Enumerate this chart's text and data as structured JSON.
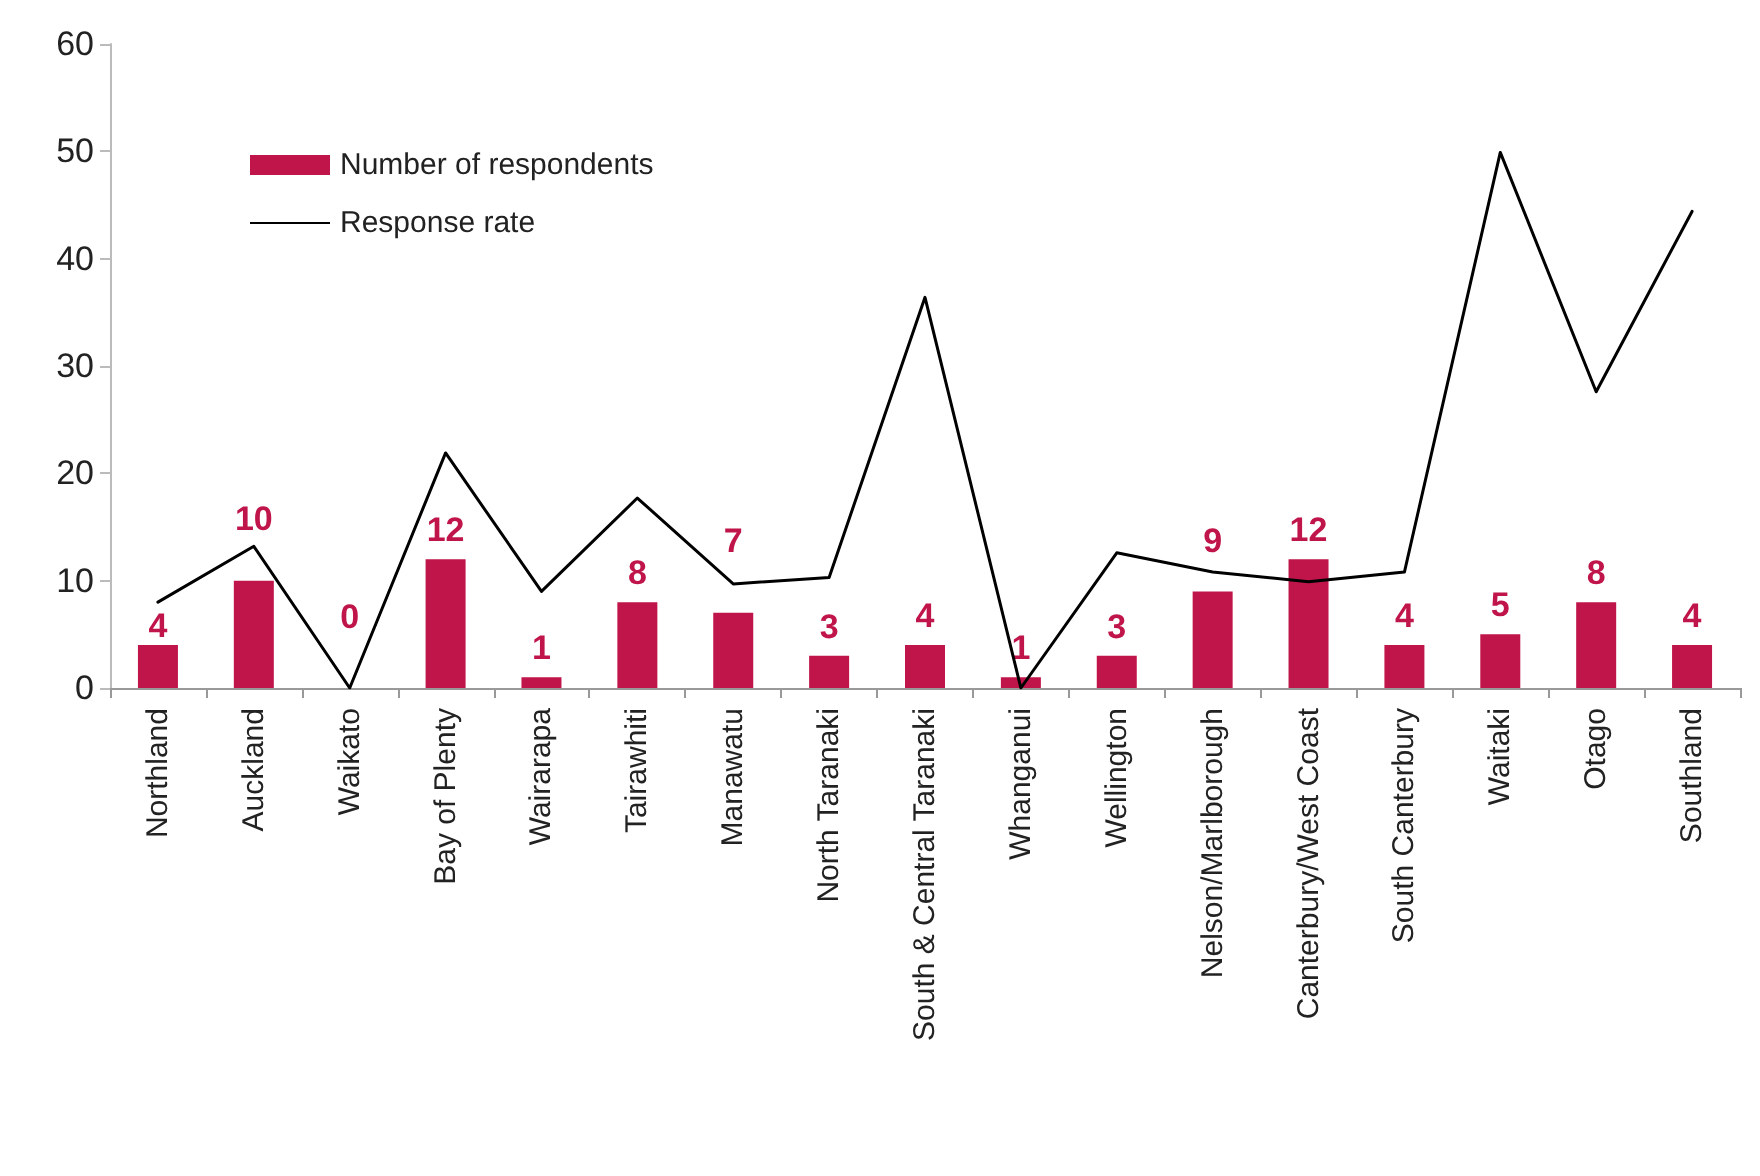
{
  "chart_data": {
    "type": "bar",
    "categories": [
      "Northland",
      "Auckland",
      "Waikato",
      "Bay of Plenty",
      "Wairarapa",
      "Tairawhiti",
      "Manawatu",
      "North Taranaki",
      "South & Central Taranaki",
      "Whanganui",
      "Wellington",
      "Nelson/Marlborough",
      "Canterbury/West Coast",
      "South Canterbury",
      "Waitaki",
      "Otago",
      "Southland"
    ],
    "series": [
      {
        "name": "Number of respondents",
        "type": "bar",
        "color": "#c0154a",
        "values": [
          4,
          10,
          0,
          12,
          1,
          8,
          7,
          3,
          4,
          1,
          3,
          9,
          12,
          4,
          5,
          8,
          4
        ],
        "value_labels": [
          "4",
          "10",
          "0",
          "12",
          "1",
          "8",
          "7",
          "3",
          "4",
          "1",
          "3",
          "9",
          "12",
          "4",
          "5",
          "8",
          "4"
        ]
      },
      {
        "name": "Response rate",
        "type": "line",
        "color": "#000000",
        "values": [
          8.0,
          13.2,
          0,
          21.9,
          9.0,
          17.7,
          9.7,
          10.3,
          36.4,
          0,
          12.6,
          10.8,
          9.9,
          10.8,
          49.9,
          27.6,
          44.4
        ]
      }
    ],
    "ylim": [
      0,
      60
    ],
    "yticks": [
      0,
      10,
      20,
      30,
      40,
      50,
      60
    ],
    "grid": false,
    "legend": "top left",
    "marker": "none",
    "line_style": "solid"
  }
}
